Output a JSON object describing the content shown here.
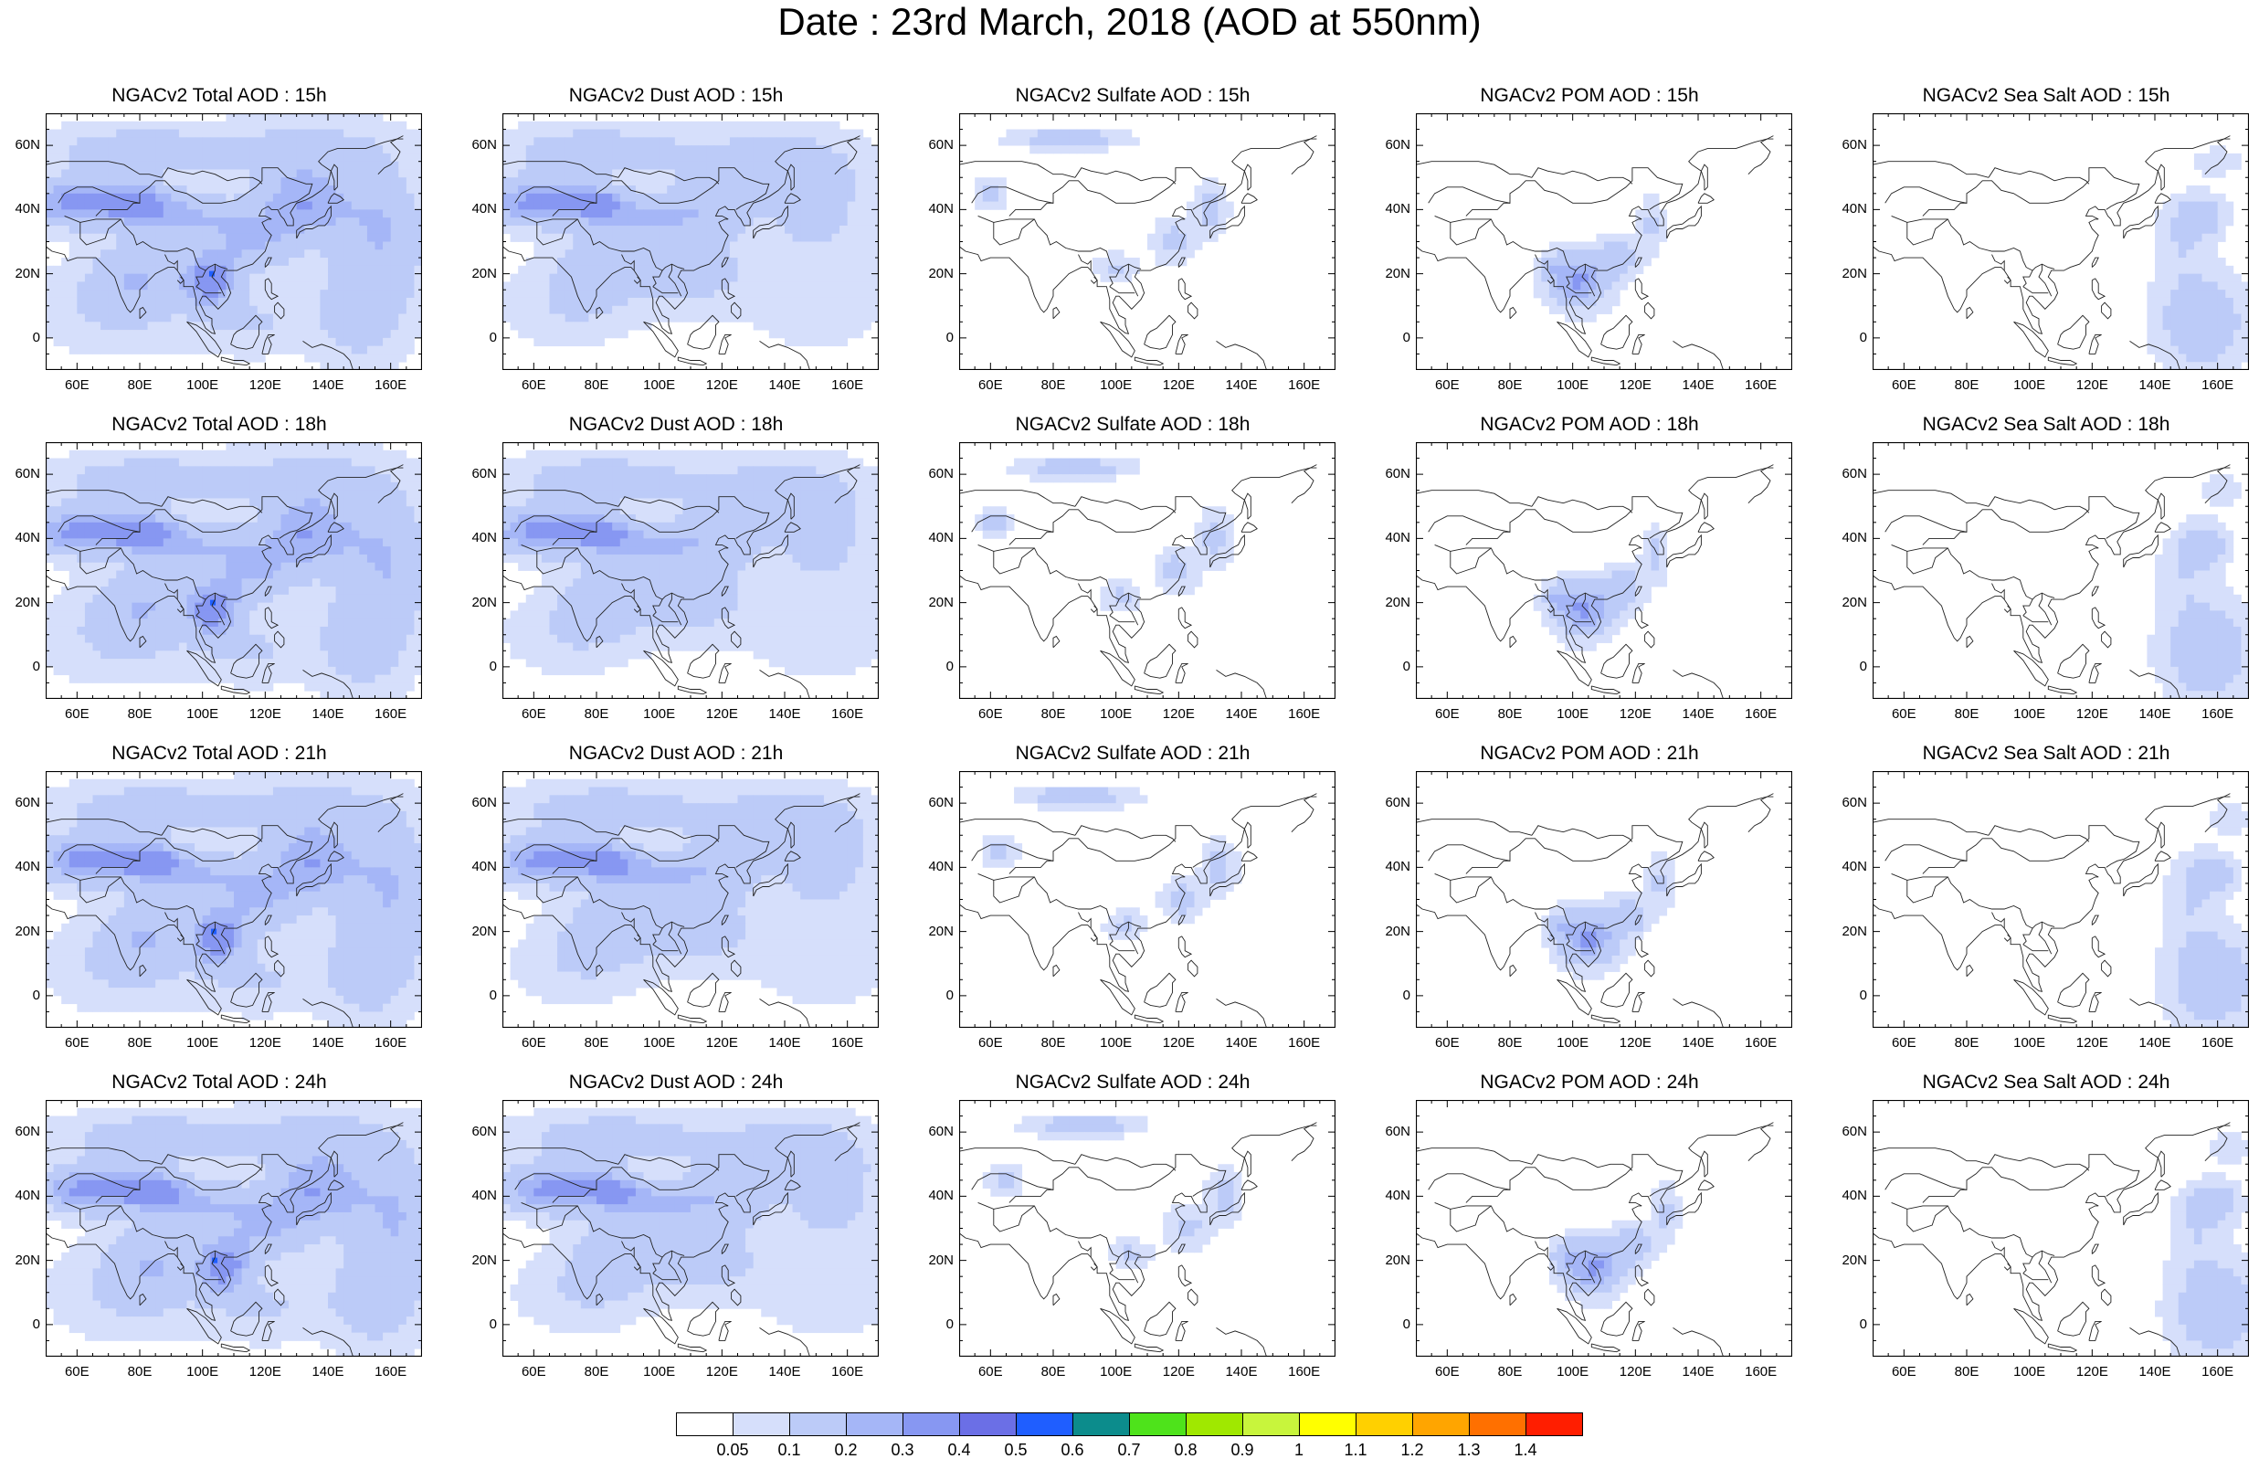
{
  "title": "Date : 23rd March, 2018 (AOD at 550nm)",
  "rows": [
    "15h",
    "18h",
    "21h",
    "24h"
  ],
  "panel_titles": [
    [
      "NGACv2 Total AOD : 15h",
      "NGACv2 Dust AOD : 15h",
      "NGACv2 Sulfate AOD : 15h",
      "NGACv2 POM AOD : 15h",
      "NGACv2 Sea Salt AOD : 15h"
    ],
    [
      "NGACv2 Total AOD : 18h",
      "NGACv2 Dust AOD : 18h",
      "NGACv2 Sulfate AOD : 18h",
      "NGACv2 POM AOD : 18h",
      "NGACv2 Sea Salt AOD : 18h"
    ],
    [
      "NGACv2 Total AOD : 21h",
      "NGACv2 Dust AOD : 21h",
      "NGACv2 Sulfate AOD : 21h",
      "NGACv2 POM AOD : 21h",
      "NGACv2 Sea Salt AOD : 21h"
    ],
    [
      "NGACv2 Total AOD : 24h",
      "NGACv2 Dust AOD : 24h",
      "NGACv2 Sulfate AOD : 24h",
      "NGACv2 POM AOD : 24h",
      "NGACv2 Sea Salt  AOD : 24h"
    ]
  ],
  "map": {
    "lon_range": [
      50,
      170
    ],
    "lat_range": [
      -10,
      70
    ],
    "lon_ticks": [
      "60E",
      "80E",
      "100E",
      "120E",
      "140E",
      "160E"
    ],
    "lon_tick_values": [
      60,
      80,
      100,
      120,
      140,
      160
    ],
    "lat_ticks": [
      "60N",
      "40N",
      "20N",
      "0"
    ],
    "lat_tick_values": [
      60,
      40,
      20,
      0
    ]
  },
  "colorbar": {
    "labels": [
      "0.05",
      "0.1",
      "0.2",
      "0.3",
      "0.4",
      "0.5",
      "0.6",
      "0.7",
      "0.8",
      "0.9",
      "1",
      "1.1",
      "1.2",
      "1.3",
      "1.4"
    ],
    "colors": [
      "#ffffff",
      "#d6dffb",
      "#bccbf8",
      "#a5b6f7",
      "#8797f2",
      "#6b6fe6",
      "#1f5eff",
      "#0c8c8c",
      "#4ee31b",
      "#a0e800",
      "#c8f53c",
      "#ffff00",
      "#ffd000",
      "#ffa500",
      "#ff7000",
      "#ff1e00"
    ]
  }
}
